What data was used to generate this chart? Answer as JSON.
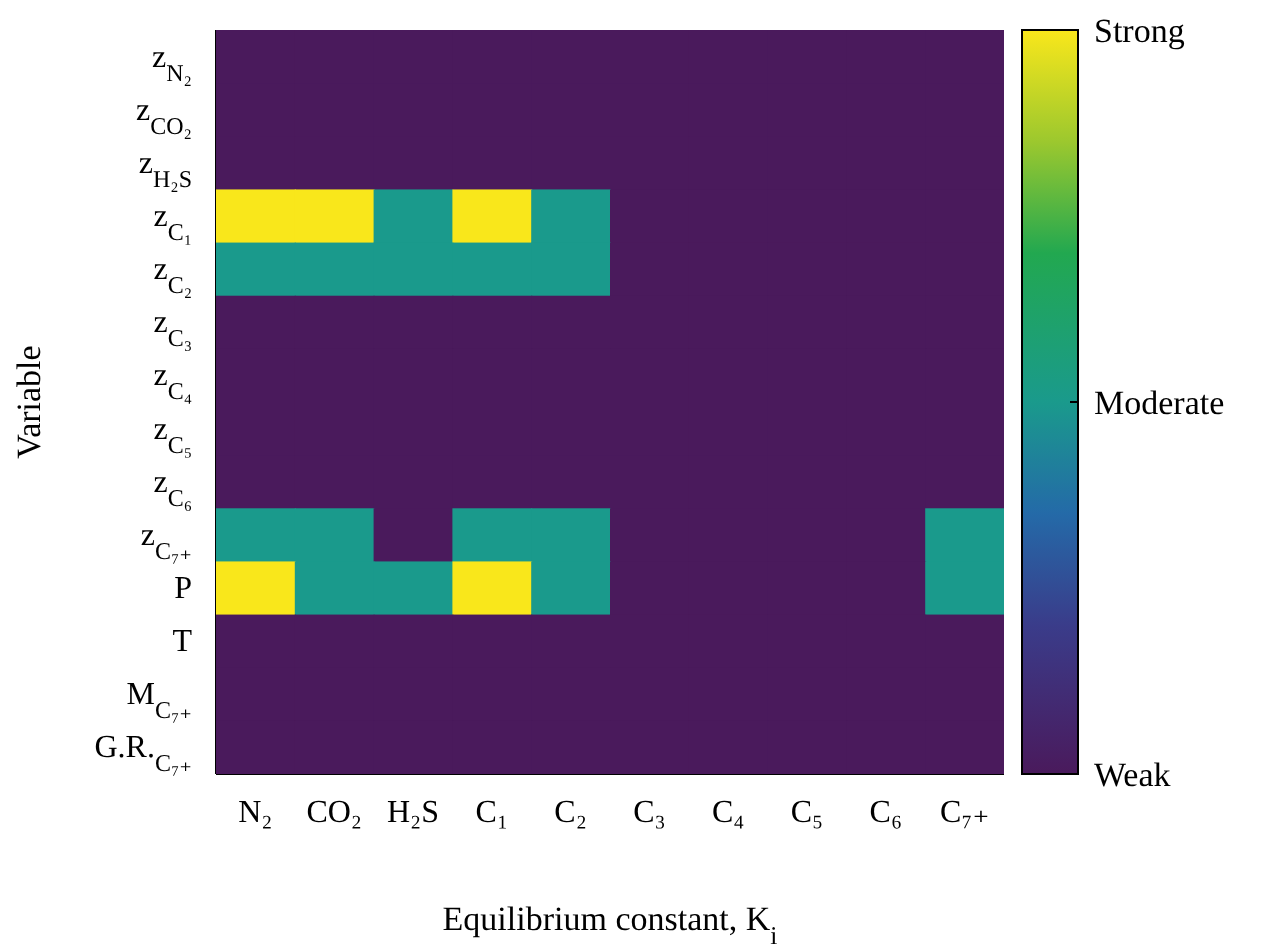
{
  "chart_data": {
    "type": "heatmap",
    "xlabel": "Equilibrium constant, K$_{i}$",
    "ylabel": "Variable",
    "categories": [
      "N₂",
      "CO₂",
      "H₂S",
      "C₁",
      "C₂",
      "C₃",
      "C₄",
      "C₅",
      "C₆",
      "C₇₊"
    ],
    "y_categories": [
      "z$_{N₂}$",
      "z$_{CO₂}$",
      "z$_{H₂S}$",
      "z$_{C₁}$",
      "z$_{C₂}$",
      "z$_{C₃}$",
      "z$_{C₄}$",
      "z$_{C₅}$",
      "z$_{C₆}$",
      "z$_{C₇₊}$",
      "P",
      "T",
      "M$_{C₇₊}$",
      "G.R.$_{C₇₊}$"
    ],
    "cells": [
      [
        0,
        0,
        0,
        0,
        0,
        0,
        0,
        0,
        0,
        0
      ],
      [
        0,
        0,
        0,
        0,
        0,
        0,
        0,
        0,
        0,
        0
      ],
      [
        0,
        0,
        0,
        0,
        0,
        0,
        0,
        0,
        0,
        0
      ],
      [
        1,
        1,
        0.5,
        1,
        0.5,
        0,
        0,
        0,
        0,
        0
      ],
      [
        0.5,
        0.5,
        0.5,
        0.5,
        0.5,
        0,
        0,
        0,
        0,
        0
      ],
      [
        0,
        0,
        0,
        0,
        0,
        0,
        0,
        0,
        0,
        0
      ],
      [
        0,
        0,
        0,
        0,
        0,
        0,
        0,
        0,
        0,
        0
      ],
      [
        0,
        0,
        0,
        0,
        0,
        0,
        0,
        0,
        0,
        0
      ],
      [
        0,
        0,
        0,
        0,
        0,
        0,
        0,
        0,
        0,
        0
      ],
      [
        0.5,
        0.5,
        0,
        0.5,
        0.5,
        0,
        0,
        0,
        0,
        0.5
      ],
      [
        1,
        0.5,
        0.5,
        1,
        0.5,
        0,
        0,
        0,
        0,
        0.5
      ],
      [
        0,
        0,
        0,
        0,
        0,
        0,
        0,
        0,
        0,
        0
      ],
      [
        0,
        0,
        0,
        0,
        0,
        0,
        0,
        0,
        0,
        0
      ],
      [
        0,
        0,
        0,
        0,
        0,
        0,
        0,
        0,
        0,
        0
      ]
    ],
    "clim": [
      0,
      1
    ],
    "cticks": [
      {
        "value": 0,
        "label": "Weak"
      },
      {
        "value": 0.5,
        "label": "Moderate"
      },
      {
        "value": 1,
        "label": "Strong"
      }
    ]
  }
}
